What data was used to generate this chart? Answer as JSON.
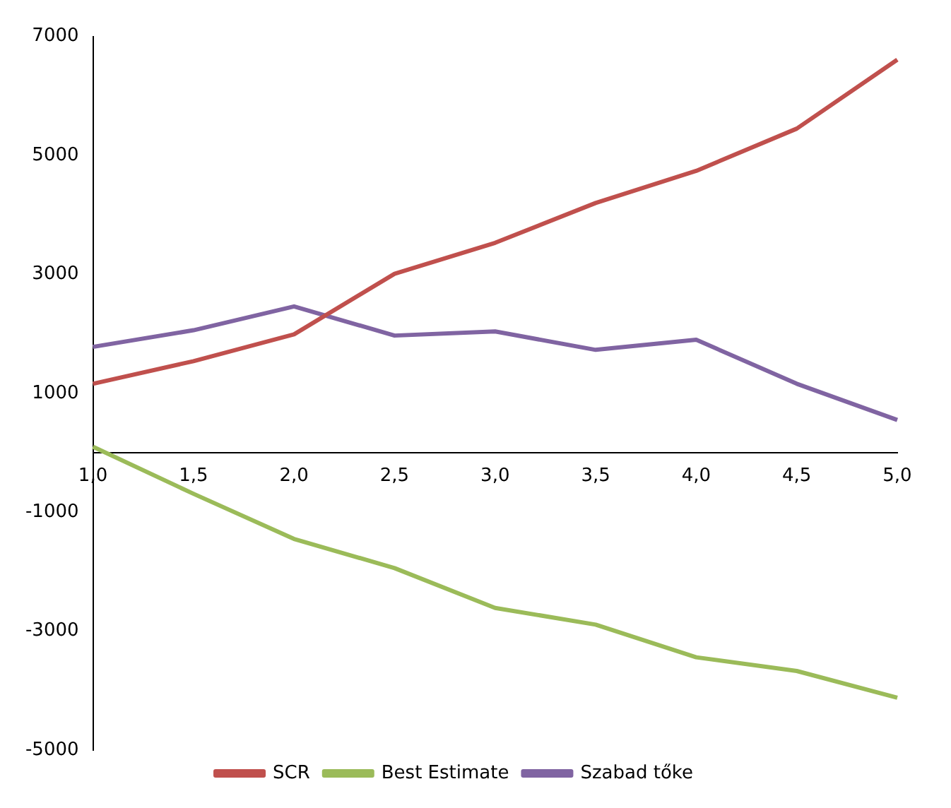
{
  "chart_data": {
    "type": "line",
    "categories": [
      "1,0",
      "1,5",
      "2,0",
      "2,5",
      "3,0",
      "3,5",
      "4,0",
      "4,5",
      "5,0"
    ],
    "series": [
      {
        "name": "SCR",
        "color": "#c0504d",
        "values": [
          1160,
          1540,
          1990,
          3010,
          3530,
          4200,
          4740,
          5450,
          6610
        ]
      },
      {
        "name": "Best Estimate",
        "color": "#9bbb59",
        "values": [
          100,
          -690,
          -1450,
          -1940,
          -2610,
          -2890,
          -3440,
          -3670,
          -4120
        ]
      },
      {
        "name": "Szabad tőke",
        "color": "#8064a2",
        "values": [
          1780,
          2060,
          2460,
          1970,
          2040,
          1730,
          1900,
          1160,
          550
        ]
      }
    ],
    "ylim": [
      -5000,
      7000
    ],
    "yticks": [
      -5000,
      -3000,
      -1000,
      1000,
      3000,
      5000,
      7000
    ],
    "grid": false,
    "legend": "bottom",
    "marker": "none",
    "line_style": "solid"
  }
}
